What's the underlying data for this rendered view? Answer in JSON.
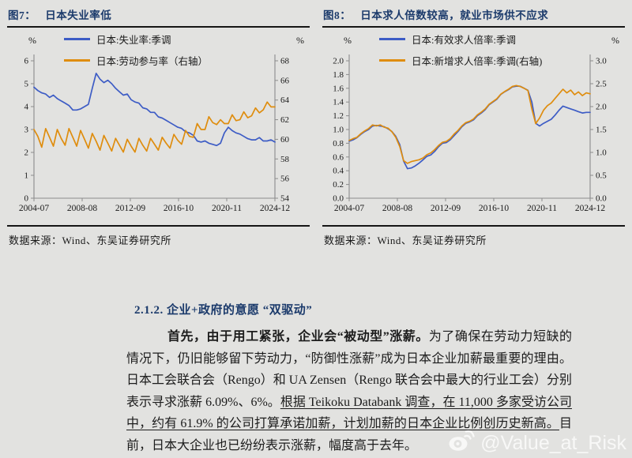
{
  "section": {
    "heading": "2.1.2. 企业+政府的意愿 “双驱动”",
    "paragraph": {
      "lead_bold": "首先，由于用工紧张，企业会“被动型”涨薪。",
      "body": "为了确保在劳动力短缺的情况下，仍旧能够留下劳动力，“防御性涨薪”成为日本企业加薪最重要的理由。日本工会联合会（Rengo）和 UA Zensen（Rengo 联合会中最大的行业工会）分别表示寻求涨薪 6.09%、6%。",
      "underlined": "根据 Teikoku Databank 调查，在 11,000 多家受访公司中，约有 61.9% 的公司打算承诺加薪，计划加薪的日本企业比例创历史新高。",
      "tail": "目前，日本大企业也已纷纷表示涨薪，幅度高于去年。"
    }
  },
  "watermark": {
    "text": "@Value_at_Risk",
    "icon": "weibo-icon"
  },
  "chart_data": [
    {
      "type": "line",
      "fig_label": "图7：",
      "title": "日本失业率低",
      "unit_left": "%",
      "unit_right": "%",
      "x_tick_labels": [
        "2004-07",
        "2008-08",
        "2012-09",
        "2016-10",
        "2020-11",
        "2024-12"
      ],
      "left_axis": {
        "min": 0,
        "max": 6,
        "tick_labels": [
          "0",
          "1",
          "2",
          "3",
          "4",
          "5",
          "6"
        ]
      },
      "right_axis": {
        "min": 54,
        "max": 68,
        "tick_labels": [
          "54",
          "56",
          "58",
          "60",
          "62",
          "64",
          "66",
          "68"
        ]
      },
      "legend_position": "top",
      "grid": false,
      "series": [
        {
          "name": "日本:失业率:季调",
          "axis": "left",
          "color": "#3d5cc5",
          "values": [
            4.85,
            4.7,
            4.6,
            4.55,
            4.4,
            4.5,
            4.35,
            4.25,
            4.15,
            4.05,
            3.85,
            3.85,
            3.9,
            4.0,
            4.1,
            4.8,
            5.45,
            5.2,
            5.05,
            5.15,
            5.0,
            4.8,
            4.65,
            4.5,
            4.55,
            4.3,
            4.2,
            4.15,
            3.95,
            3.9,
            3.75,
            3.75,
            3.55,
            3.5,
            3.4,
            3.3,
            3.2,
            3.1,
            3.05,
            2.9,
            2.85,
            2.75,
            2.5,
            2.45,
            2.5,
            2.4,
            2.35,
            2.3,
            2.4,
            2.85,
            3.1,
            2.95,
            2.85,
            2.8,
            2.7,
            2.6,
            2.55,
            2.55,
            2.65,
            2.5,
            2.5,
            2.55,
            2.45
          ]
        },
        {
          "name": "日本:劳动参与率（右轴）",
          "axis": "right",
          "color": "#df8d0e",
          "values": [
            61.0,
            60.3,
            59.2,
            61.1,
            60.2,
            59.3,
            61.0,
            60.1,
            59.4,
            61.1,
            60.2,
            59.3,
            60.9,
            60.0,
            59.1,
            60.6,
            59.8,
            58.9,
            60.4,
            59.6,
            58.8,
            60.1,
            59.4,
            58.7,
            60.0,
            59.3,
            58.7,
            60.1,
            59.4,
            58.8,
            60.1,
            59.5,
            58.9,
            60.2,
            59.6,
            59.1,
            60.5,
            59.9,
            59.5,
            60.9,
            60.3,
            60.2,
            61.6,
            61.0,
            61.0,
            62.3,
            61.7,
            61.5,
            62.0,
            61.6,
            61.6,
            62.5,
            61.9,
            62.0,
            62.8,
            62.2,
            62.4,
            63.2,
            62.7,
            63.0,
            63.8,
            63.3,
            63.3
          ]
        }
      ],
      "source": "数据来源：Wind、东吴证券研究所"
    },
    {
      "type": "line",
      "fig_label": "图8：",
      "title": "日本求人倍数较高，就业市场供不应求",
      "unit_left": "%",
      "unit_right": "%",
      "x_tick_labels": [
        "2004-07",
        "2008-08",
        "2012-09",
        "2016-10",
        "2020-11",
        "2024-12"
      ],
      "left_axis": {
        "min": 0,
        "max": 2.0,
        "tick_labels": [
          "0.0",
          "0.2",
          "0.4",
          "0.6",
          "0.8",
          "1.0",
          "1.2",
          "1.4",
          "1.6",
          "1.8",
          "2.0"
        ]
      },
      "right_axis": {
        "min": 0,
        "max": 3.0,
        "tick_labels": [
          "0.0",
          "0.5",
          "1.0",
          "1.5",
          "2.0",
          "2.5",
          "3.0"
        ]
      },
      "legend_position": "top",
      "grid": false,
      "series": [
        {
          "name": "日本:有效求人倍率:季调",
          "axis": "left",
          "color": "#3d5cc5",
          "values": [
            0.83,
            0.85,
            0.88,
            0.93,
            0.97,
            1.0,
            1.05,
            1.06,
            1.05,
            1.04,
            1.01,
            0.97,
            0.9,
            0.78,
            0.54,
            0.43,
            0.44,
            0.47,
            0.51,
            0.56,
            0.61,
            0.63,
            0.68,
            0.75,
            0.8,
            0.81,
            0.85,
            0.91,
            0.97,
            1.04,
            1.09,
            1.11,
            1.14,
            1.2,
            1.24,
            1.29,
            1.36,
            1.4,
            1.44,
            1.51,
            1.55,
            1.58,
            1.62,
            1.63,
            1.63,
            1.6,
            1.57,
            1.4,
            1.09,
            1.05,
            1.09,
            1.12,
            1.15,
            1.21,
            1.28,
            1.34,
            1.32,
            1.3,
            1.28,
            1.26,
            1.24,
            1.25,
            1.25
          ]
        },
        {
          "name": "日本:新增求人倍率:季调(右轴)",
          "axis": "right",
          "color": "#df8d0e",
          "values": [
            1.26,
            1.3,
            1.33,
            1.41,
            1.47,
            1.52,
            1.6,
            1.58,
            1.6,
            1.55,
            1.53,
            1.45,
            1.33,
            1.13,
            0.82,
            0.76,
            0.8,
            0.82,
            0.84,
            0.88,
            0.95,
            0.99,
            1.06,
            1.15,
            1.22,
            1.24,
            1.3,
            1.4,
            1.48,
            1.58,
            1.65,
            1.68,
            1.73,
            1.82,
            1.88,
            1.95,
            2.05,
            2.11,
            2.17,
            2.27,
            2.33,
            2.38,
            2.44,
            2.46,
            2.44,
            2.4,
            2.35,
            1.95,
            1.63,
            1.75,
            1.92,
            2.02,
            2.08,
            2.18,
            2.28,
            2.38,
            2.3,
            2.36,
            2.26,
            2.32,
            2.24,
            2.3,
            2.28
          ]
        }
      ],
      "source": "数据来源：Wind、东吴证券研究所"
    }
  ]
}
